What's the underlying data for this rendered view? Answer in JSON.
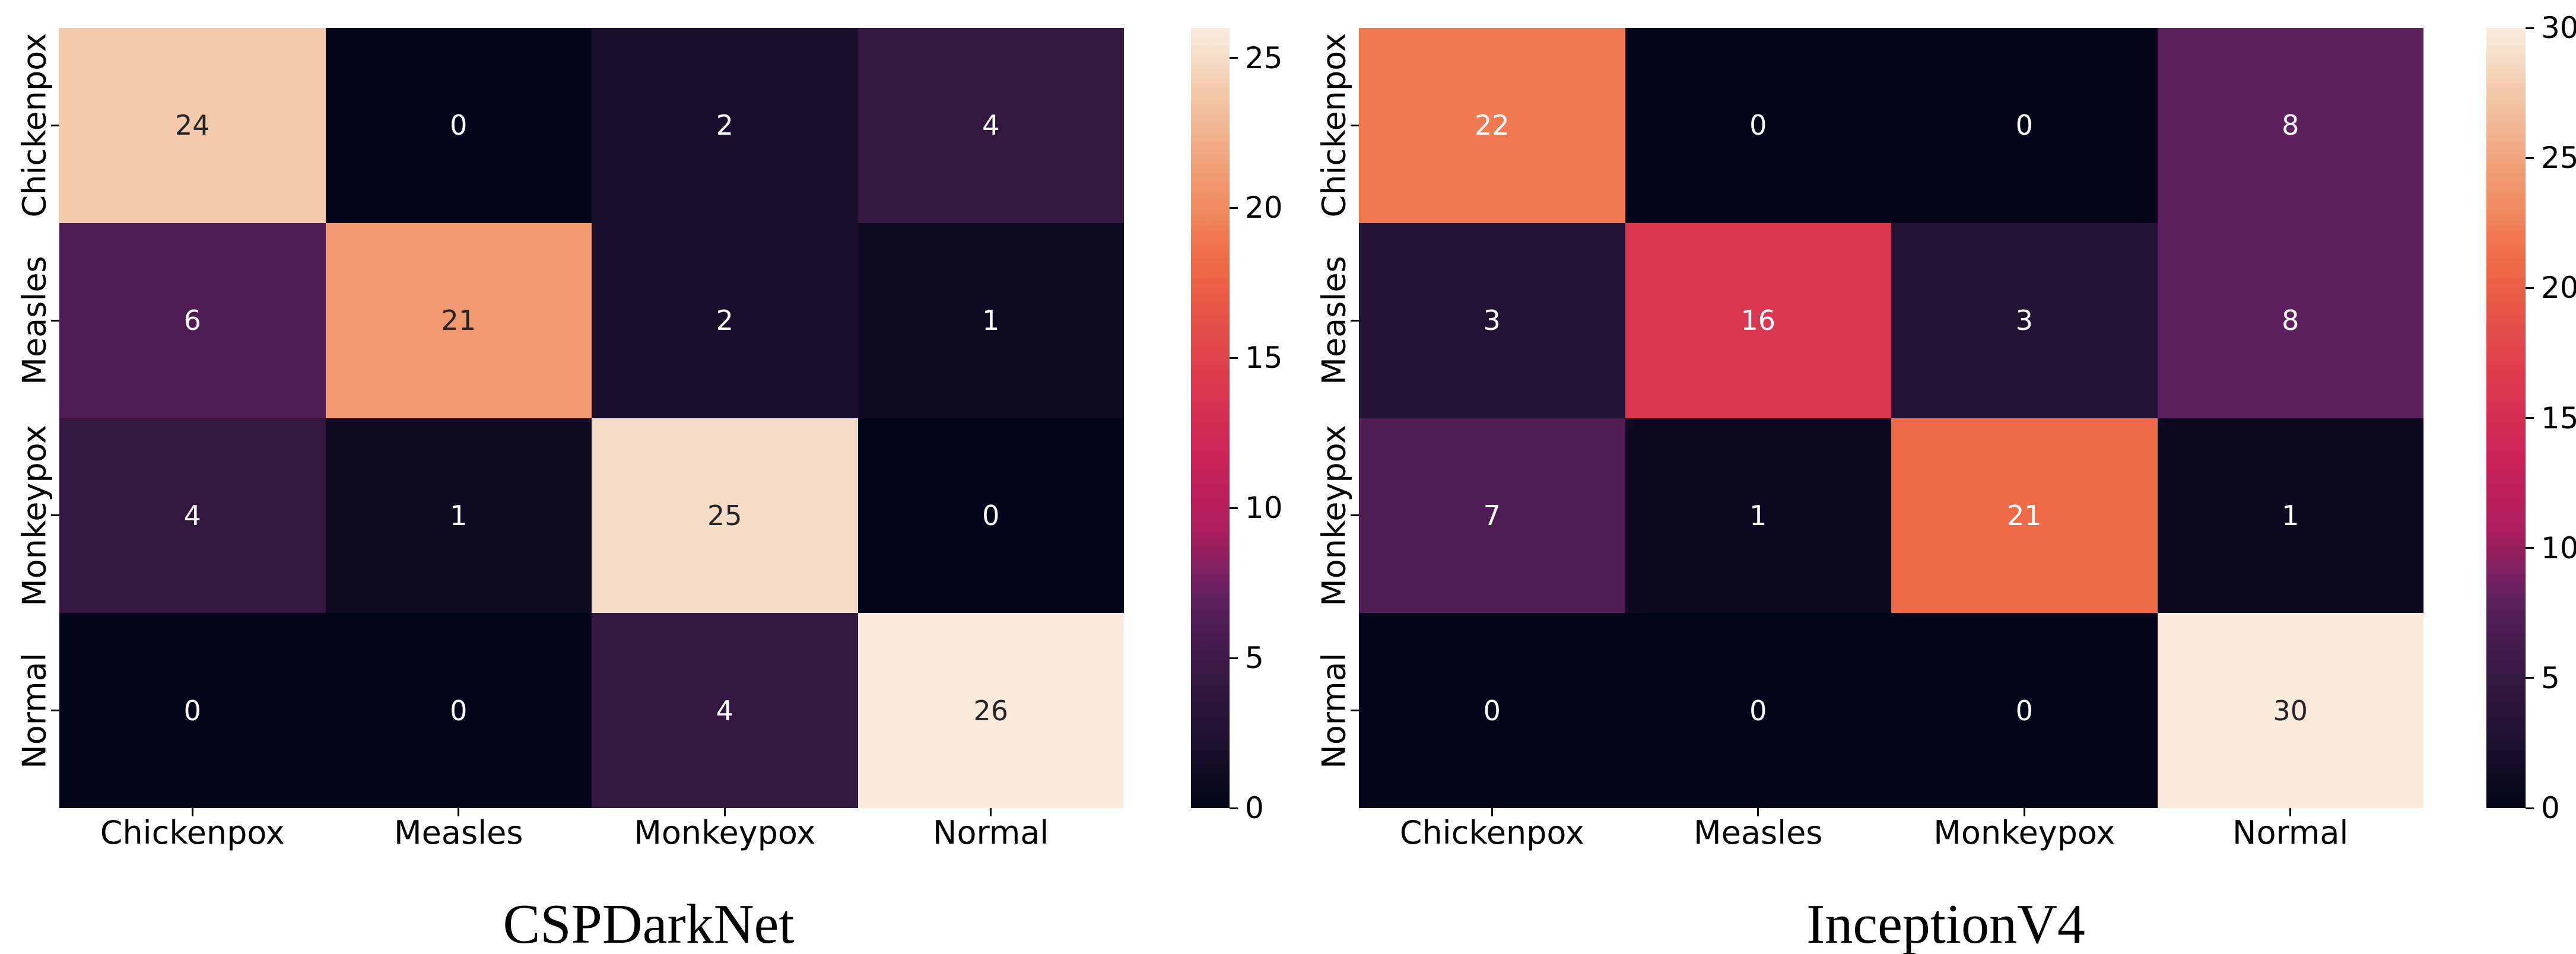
{
  "figure": {
    "background": "#ffffff"
  },
  "chart_data": [
    {
      "type": "heatmap",
      "title": "CSPDarkNet",
      "x_categories": [
        "Chickenpox",
        "Measles",
        "Monkeypox",
        "Normal"
      ],
      "y_categories": [
        "Chickenpox",
        "Measles",
        "Monkeypox",
        "Normal"
      ],
      "rows": [
        [
          24,
          0,
          2,
          4
        ],
        [
          6,
          21,
          2,
          1
        ],
        [
          4,
          1,
          25,
          0
        ],
        [
          0,
          0,
          4,
          26
        ]
      ],
      "vmin": 0,
      "vmax": 26,
      "colorbar_ticks": [
        0,
        5,
        10,
        15,
        20,
        25
      ],
      "colormap": "rocket",
      "colorbar_position": "right",
      "annotated": true
    },
    {
      "type": "heatmap",
      "title": "InceptionV4",
      "x_categories": [
        "Chickenpox",
        "Measles",
        "Monkeypox",
        "Normal"
      ],
      "y_categories": [
        "Chickenpox",
        "Measles",
        "Monkeypox",
        "Normal"
      ],
      "rows": [
        [
          22,
          0,
          0,
          8
        ],
        [
          3,
          16,
          3,
          8
        ],
        [
          7,
          1,
          21,
          1
        ],
        [
          0,
          0,
          0,
          30
        ]
      ],
      "vmin": 0,
      "vmax": 30,
      "colorbar_ticks": [
        0,
        5,
        10,
        15,
        20,
        25,
        30
      ],
      "colormap": "rocket",
      "colorbar_position": "right",
      "annotated": true
    }
  ],
  "colors": {
    "colormap_stops": [
      [
        0.0,
        "#03051A"
      ],
      [
        0.04,
        "#0F0A23"
      ],
      [
        0.08,
        "#1B102E"
      ],
      [
        0.12,
        "#281438"
      ],
      [
        0.16,
        "#351742"
      ],
      [
        0.2,
        "#42194B"
      ],
      [
        0.24,
        "#511D55"
      ],
      [
        0.267,
        "#5D2160"
      ],
      [
        0.3,
        "#7B2061"
      ],
      [
        0.35,
        "#A81E5E"
      ],
      [
        0.385,
        "#B71E5B"
      ],
      [
        0.44,
        "#C92158"
      ],
      [
        0.5,
        "#D62D52"
      ],
      [
        0.577,
        "#E0424B"
      ],
      [
        0.64,
        "#E85647"
      ],
      [
        0.7,
        "#EF6A46"
      ],
      [
        0.733,
        "#F17850"
      ],
      [
        0.77,
        "#F18C62"
      ],
      [
        0.81,
        "#F09A71"
      ],
      [
        0.87,
        "#F2B592"
      ],
      [
        0.923,
        "#F3CBAA"
      ],
      [
        0.96,
        "#F6DCC6"
      ],
      [
        1.0,
        "#FAEBDD"
      ]
    ],
    "annotation_dark": "#262626",
    "annotation_light": "#FEFEFE",
    "axis_text": "#000000",
    "tick_color": "#000000"
  }
}
